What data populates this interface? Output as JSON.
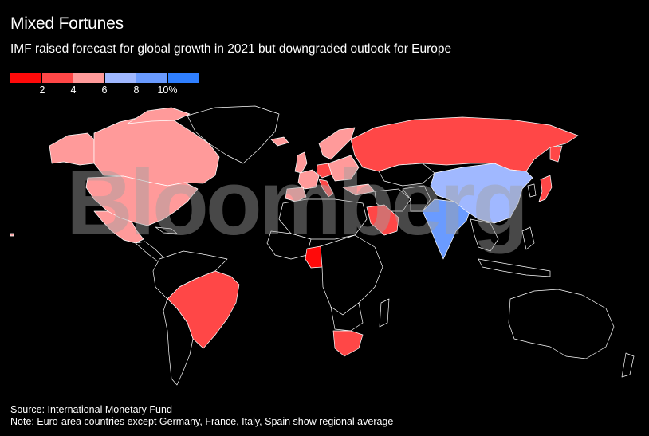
{
  "title": "Mixed Fortunes",
  "subtitle": "IMF raised forecast for global growth in 2021 but downgraded outlook for Europe",
  "legend": {
    "colors": [
      "#ff0a0a",
      "#ff4747",
      "#ff9a9a",
      "#a0b8ff",
      "#6a9bff",
      "#2f7fff"
    ],
    "labels": [
      "2",
      "4",
      "6",
      "8",
      "10%"
    ]
  },
  "watermark": "Bloomberg",
  "source": "Source: International Monetary Fund",
  "note": "Note: Euro-area countries except Germany, France, Italy, Spain show regional average",
  "colors": {
    "no_data": "#000000",
    "border": "#ffffff",
    "bin_lowest": "#ff0a0a",
    "bin_2_4": "#ff4747",
    "bin_4_6": "#ff9a9a",
    "bin_6_8": "#a0b8ff",
    "bin_8_10": "#6a9bff"
  },
  "map_legend_bins": {
    "Canada": "4-6",
    "United States": "4-6",
    "Mexico": "4-6",
    "Brazil": "2-4",
    "Russia": "2-4",
    "China": "6-8",
    "India": "8-10",
    "Japan": "2-4",
    "Saudi Arabia": "2-4",
    "Nigeria": "lowest",
    "South Africa": "2-4",
    "United Kingdom": "4-6",
    "Euro area": "4-6",
    "Germany": "2-4",
    "Spain": "4-6",
    "Italy": "2-4",
    "France": "4-6",
    "Turkey": "4-6"
  }
}
